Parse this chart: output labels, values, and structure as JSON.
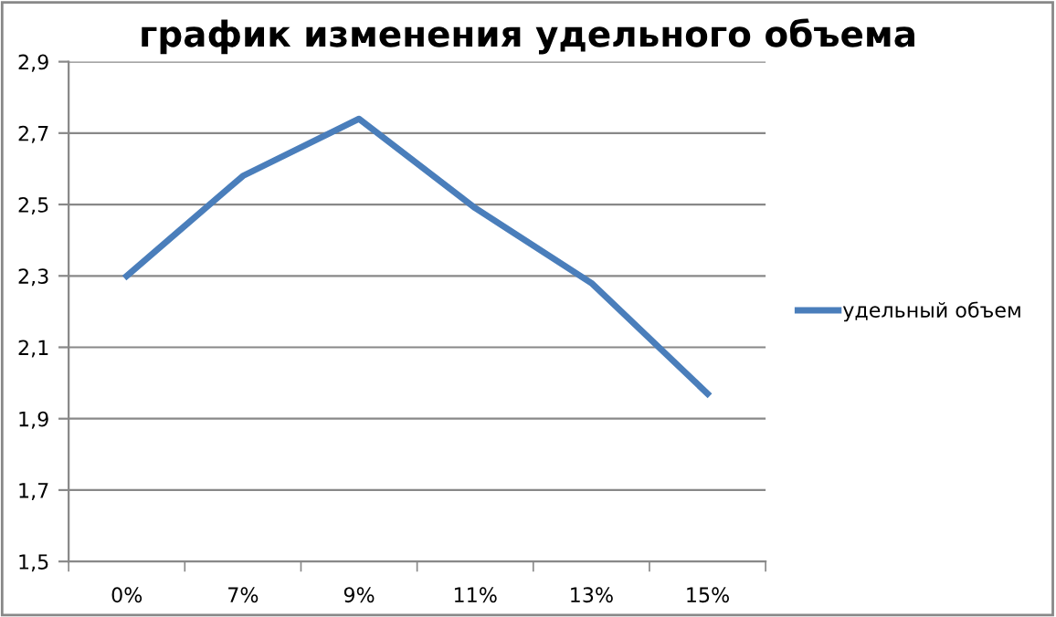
{
  "chart_data": {
    "type": "line",
    "title": "график изменения удельного объема",
    "categories": [
      "0%",
      "7%",
      "9%",
      "11%",
      "13%",
      "15%"
    ],
    "series": [
      {
        "name": "удельный объем",
        "color": "#4a7ebb",
        "values": [
          2.3,
          2.58,
          2.74,
          2.49,
          2.28,
          1.97
        ]
      }
    ],
    "ylim": [
      1.5,
      2.9
    ],
    "yticks": [
      {
        "value": 1.5,
        "label": "1,5"
      },
      {
        "value": 1.7,
        "label": "1,7"
      },
      {
        "value": 1.9,
        "label": "1,9"
      },
      {
        "value": 2.1,
        "label": "2,1"
      },
      {
        "value": 2.3,
        "label": "2,3"
      },
      {
        "value": 2.5,
        "label": "2,5"
      },
      {
        "value": 2.7,
        "label": "2,7"
      },
      {
        "value": 2.9,
        "label": "2,9"
      }
    ],
    "grid": "y",
    "legend": "right",
    "marker": "none",
    "line_style": "solid"
  }
}
